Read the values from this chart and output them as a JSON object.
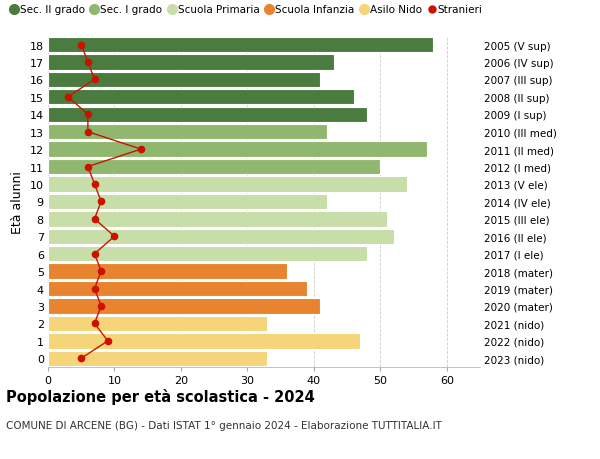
{
  "ages": [
    0,
    1,
    2,
    3,
    4,
    5,
    6,
    7,
    8,
    9,
    10,
    11,
    12,
    13,
    14,
    15,
    16,
    17,
    18
  ],
  "bar_values": [
    33,
    47,
    33,
    41,
    39,
    36,
    48,
    52,
    51,
    42,
    54,
    50,
    57,
    42,
    48,
    46,
    41,
    43,
    58
  ],
  "stranieri": [
    5,
    9,
    7,
    8,
    7,
    8,
    7,
    10,
    7,
    8,
    7,
    6,
    14,
    6,
    6,
    3,
    7,
    6,
    5
  ],
  "bar_colors": [
    "#f5d47a",
    "#f5d47a",
    "#f5d47a",
    "#e88430",
    "#e88430",
    "#e88430",
    "#c8dea8",
    "#c8dea8",
    "#c8dea8",
    "#c8dea8",
    "#c8dea8",
    "#8fb86e",
    "#8fb86e",
    "#8fb86e",
    "#4a7c3f",
    "#4a7c3f",
    "#4a7c3f",
    "#4a7c3f",
    "#4a7c3f"
  ],
  "right_labels": [
    "2023 (nido)",
    "2022 (nido)",
    "2021 (nido)",
    "2020 (mater)",
    "2019 (mater)",
    "2018 (mater)",
    "2017 (I ele)",
    "2016 (II ele)",
    "2015 (III ele)",
    "2014 (IV ele)",
    "2013 (V ele)",
    "2012 (I med)",
    "2011 (II med)",
    "2010 (III med)",
    "2009 (I sup)",
    "2008 (II sup)",
    "2007 (III sup)",
    "2006 (IV sup)",
    "2005 (V sup)"
  ],
  "legend_labels": [
    "Sec. II grado",
    "Sec. I grado",
    "Scuola Primaria",
    "Scuola Infanzia",
    "Asilo Nido",
    "Stranieri"
  ],
  "legend_colors": [
    "#4a7c3f",
    "#8fb86e",
    "#c8dea8",
    "#e88430",
    "#f5d47a",
    "#cc1100"
  ],
  "ylabel": "Età alunni",
  "title": "Popolazione per età scolastica - 2024",
  "subtitle": "COMUNE DI ARCENE (BG) - Dati ISTAT 1° gennaio 2024 - Elaborazione TUTTITALIA.IT",
  "xlim": [
    0,
    65
  ],
  "background_color": "#ffffff",
  "grid_color": "#cccccc",
  "stranieri_color": "#cc1100"
}
